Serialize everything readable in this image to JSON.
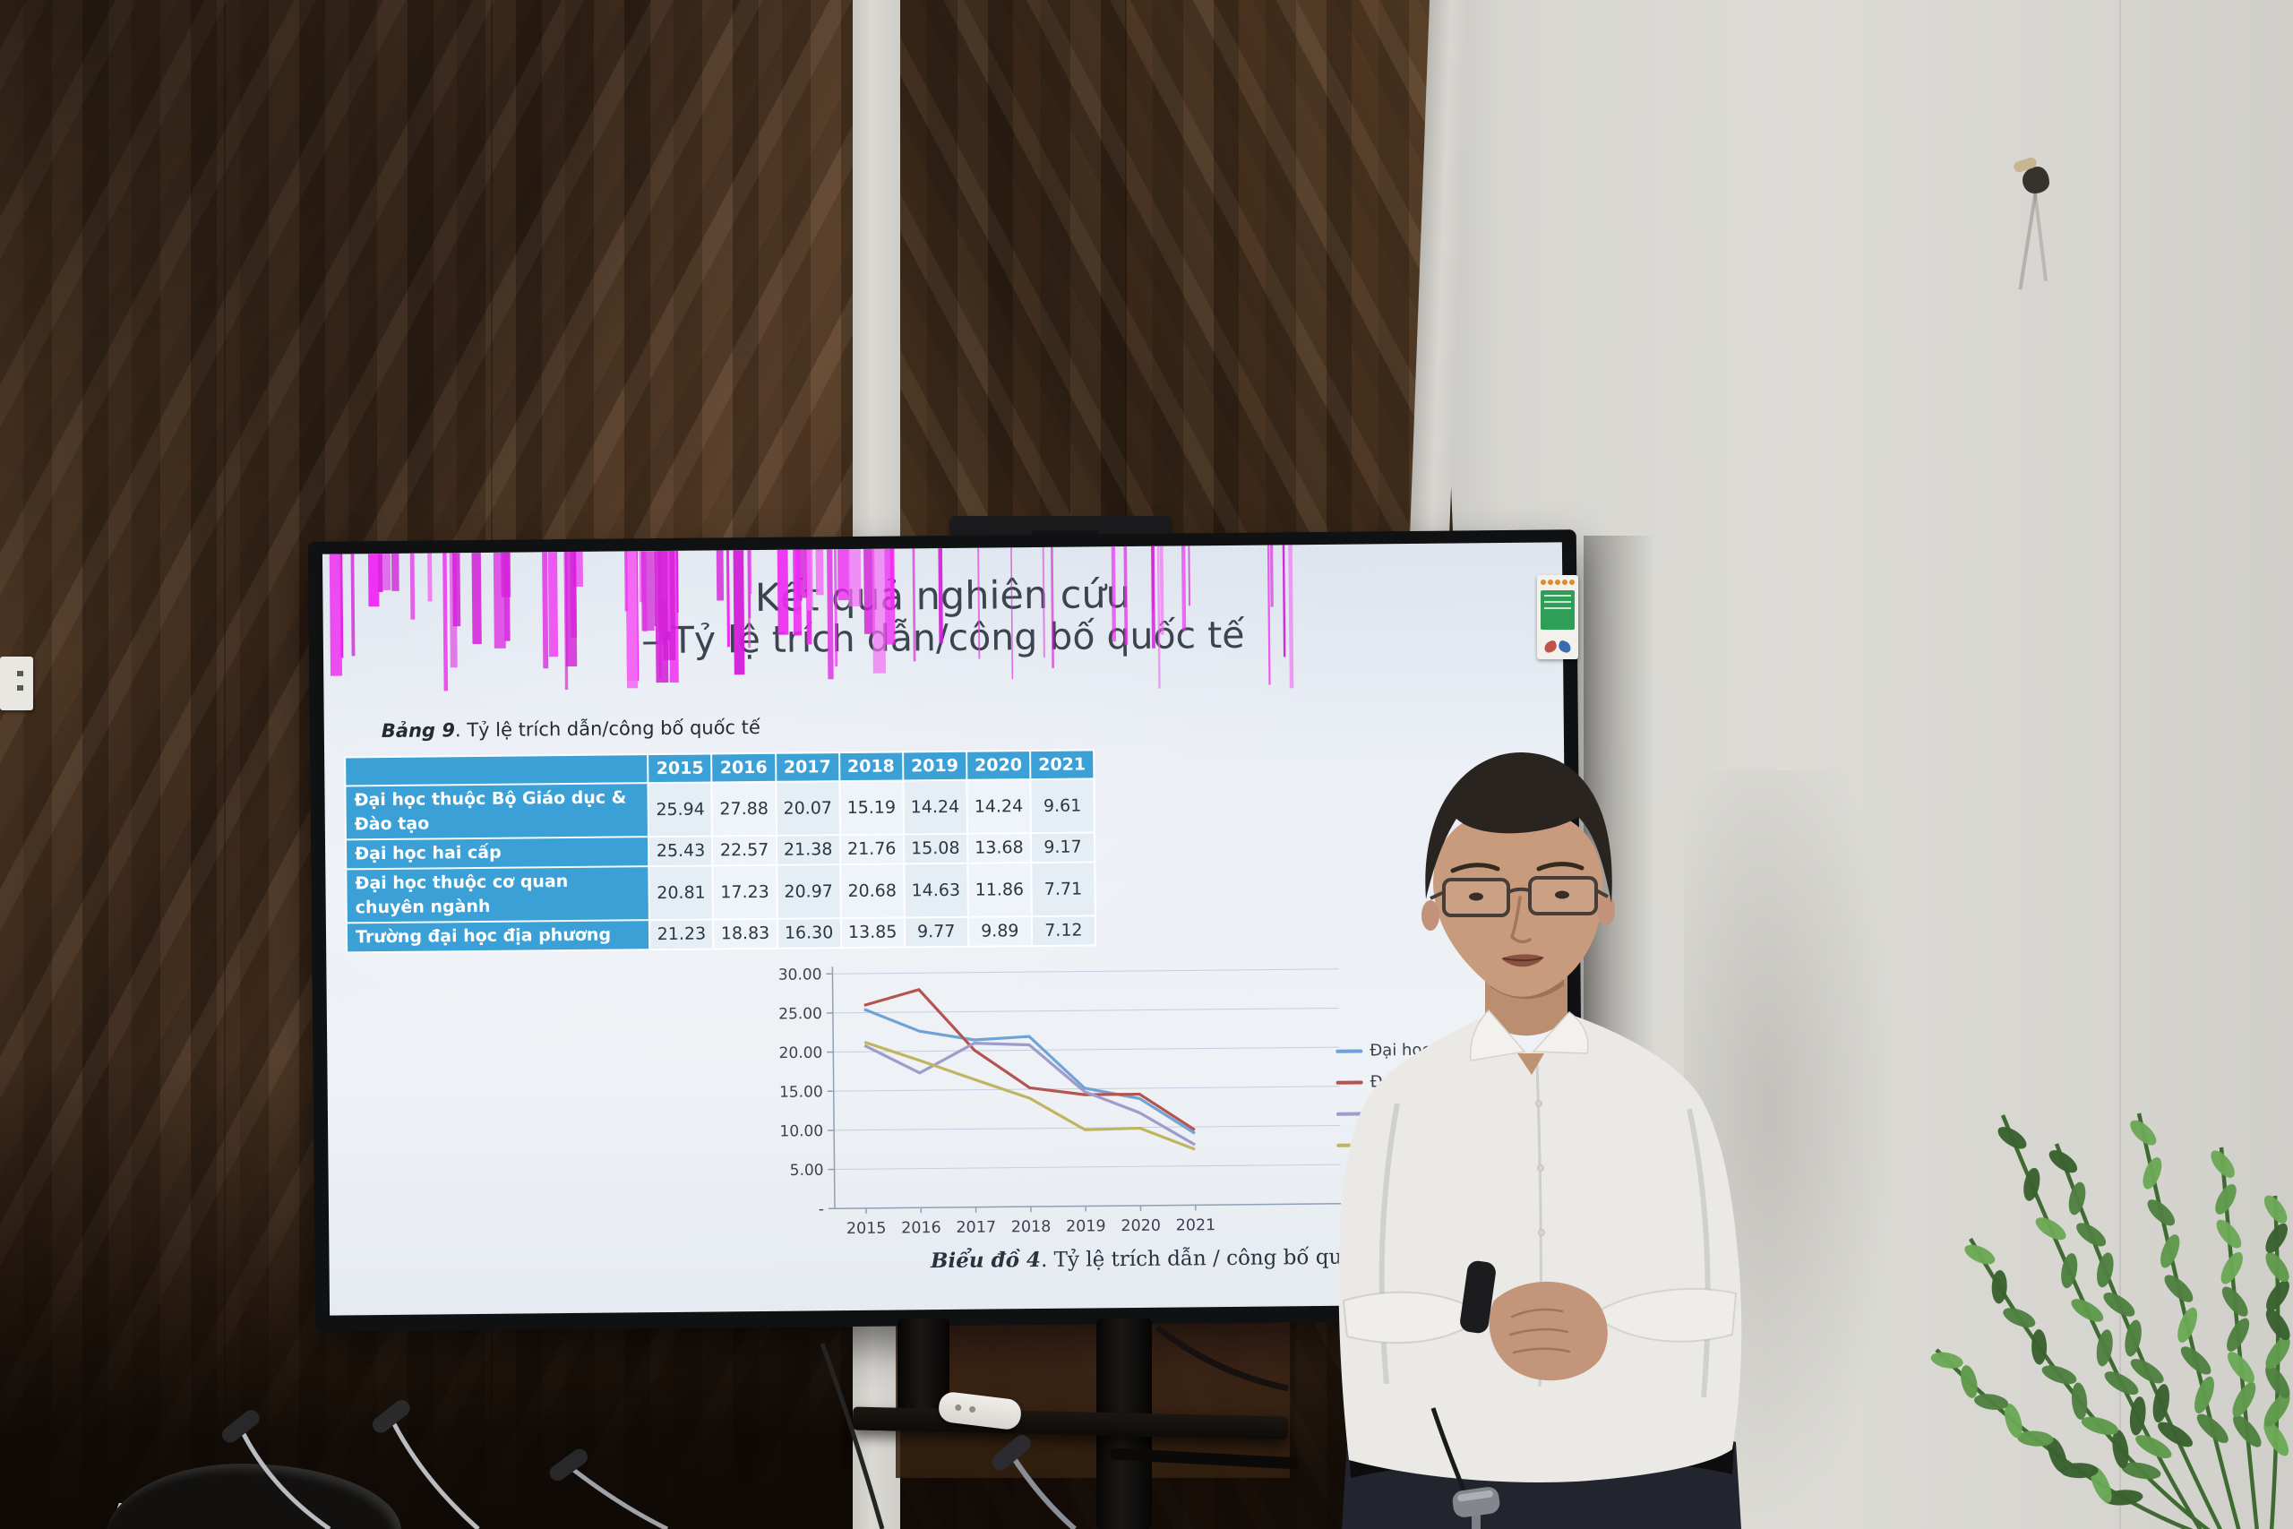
{
  "slide": {
    "title_line1": "Kết quả nghiên cứu",
    "title_line2": "– Tỷ lệ trích dẫn/công bố quốc tế",
    "table_label_bold": "Bảng 9",
    "table_label_rest": ". Tỷ lệ trích dẫn/công bố quốc tế",
    "chart_caption_bold": "Biểu đồ 4",
    "chart_caption_rest": ". Tỷ lệ trích dẫn / công bố quốc tế",
    "table": {
      "corner_header": "",
      "year_headers": [
        "2015",
        "2016",
        "2017",
        "2018",
        "2019",
        "2020",
        "2021"
      ],
      "rows": [
        {
          "label": "Đại học thuộc Bộ Giáo dục & Đào tạo",
          "values": [
            "25.94",
            "27.88",
            "20.07",
            "15.19",
            "14.24",
            "14.24",
            "9.61"
          ]
        },
        {
          "label": "Đại học hai cấp",
          "values": [
            "25.43",
            "22.57",
            "21.38",
            "21.76",
            "15.08",
            "13.68",
            "9.17"
          ]
        },
        {
          "label": "Đại học thuộc cơ quan chuyên ngành",
          "values": [
            "20.81",
            "17.23",
            "20.97",
            "20.68",
            "14.63",
            "11.86",
            "7.71"
          ]
        },
        {
          "label": "Trường đại học địa phương",
          "values": [
            "21.23",
            "18.83",
            "16.30",
            "13.85",
            "9.77",
            "9.89",
            "7.12"
          ]
        }
      ]
    }
  },
  "chart_data": {
    "type": "line",
    "title": "Biểu đồ 4. Tỷ lệ trích dẫn / công bố quốc tế",
    "categories": [
      "2015",
      "2016",
      "2017",
      "2018",
      "2019",
      "2020",
      "2021"
    ],
    "series": [
      {
        "name": "Đại học hai cấp",
        "color": "#6fa3d8",
        "values": [
          25.43,
          22.57,
          21.38,
          21.76,
          15.08,
          13.68,
          9.17
        ]
      },
      {
        "name": "Đại học thuộc Bộ Giáo dục & Đào tạo",
        "color": "#b5544f",
        "values": [
          25.94,
          27.88,
          20.07,
          15.19,
          14.24,
          14.24,
          9.61
        ]
      },
      {
        "name": "Đại học thuộc cơ quan chuyên ngành",
        "color": "#9f9bca",
        "values": [
          20.81,
          17.23,
          20.97,
          20.68,
          14.63,
          11.86,
          7.71
        ]
      },
      {
        "name": "Trường đại học địa phương",
        "color": "#c0b55e",
        "values": [
          21.23,
          18.83,
          16.3,
          13.85,
          9.77,
          9.89,
          7.12
        ]
      }
    ],
    "ylim": [
      0,
      30
    ],
    "ytick_labels": [
      "-",
      "5.00",
      "10.00",
      "15.00",
      "20.00",
      "25.00",
      "30.00"
    ],
    "grid": true,
    "legend_position": "right"
  },
  "colors": {
    "table_header_blue": "#3aa0d6",
    "glitch_magenta": "#ee2bf2",
    "slide_text": "#3c4450"
  }
}
